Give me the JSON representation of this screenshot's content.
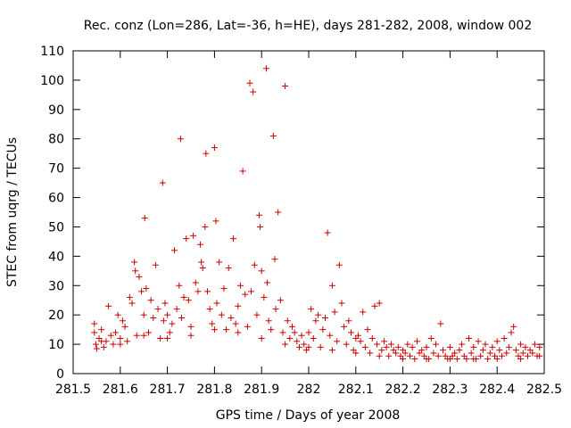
{
  "chart_data": {
    "type": "scatter",
    "title": "Rec. conz (Lon=286, Lat=-36, h=HE), days 281-282, 2008, window 002",
    "xlabel": "GPS time / Days of year 2008",
    "ylabel": "STEC from uqrg / TECUs",
    "xlim": [
      281.5,
      282.5
    ],
    "ylim": [
      0,
      110
    ],
    "xticks": [
      "281.5",
      "281.6",
      "281.7",
      "281.8",
      "281.9",
      "282",
      "282.1",
      "282.2",
      "282.3",
      "282.4",
      "282.5"
    ],
    "yticks": [
      "0",
      "10",
      "20",
      "30",
      "40",
      "50",
      "60",
      "70",
      "80",
      "90",
      "100",
      "110"
    ],
    "xtick_values": [
      281.5,
      281.6,
      281.7,
      281.8,
      281.9,
      282.0,
      282.1,
      282.2,
      282.3,
      282.4,
      282.5
    ],
    "ytick_values": [
      0,
      10,
      20,
      30,
      40,
      50,
      60,
      70,
      80,
      90,
      100,
      110
    ],
    "grid": false,
    "marker": "+",
    "marker_color": "#cc0000",
    "points": [
      [
        281.545,
        17
      ],
      [
        281.545,
        14
      ],
      [
        281.548,
        10
      ],
      [
        281.55,
        8.5
      ],
      [
        281.555,
        12
      ],
      [
        281.56,
        15
      ],
      [
        281.565,
        9
      ],
      [
        281.57,
        11
      ],
      [
        281.575,
        23
      ],
      [
        281.58,
        13
      ],
      [
        281.585,
        10
      ],
      [
        281.59,
        14
      ],
      [
        281.595,
        20
      ],
      [
        281.6,
        12
      ],
      [
        281.605,
        18
      ],
      [
        281.61,
        16
      ],
      [
        281.615,
        11
      ],
      [
        281.62,
        26
      ],
      [
        281.625,
        24
      ],
      [
        281.63,
        38
      ],
      [
        281.632,
        35
      ],
      [
        281.635,
        13
      ],
      [
        281.64,
        33
      ],
      [
        281.645,
        28
      ],
      [
        281.65,
        20
      ],
      [
        281.652,
        53
      ],
      [
        281.655,
        29
      ],
      [
        281.66,
        14
      ],
      [
        281.665,
        25
      ],
      [
        281.67,
        19
      ],
      [
        281.675,
        37
      ],
      [
        281.68,
        22
      ],
      [
        281.685,
        12
      ],
      [
        281.69,
        65
      ],
      [
        281.692,
        18
      ],
      [
        281.695,
        24
      ],
      [
        281.7,
        20
      ],
      [
        281.705,
        14
      ],
      [
        281.71,
        17
      ],
      [
        281.715,
        42
      ],
      [
        281.72,
        22
      ],
      [
        281.725,
        30
      ],
      [
        281.728,
        80
      ],
      [
        281.73,
        19
      ],
      [
        281.735,
        26
      ],
      [
        281.74,
        46
      ],
      [
        281.745,
        25
      ],
      [
        281.75,
        16
      ],
      [
        281.755,
        47
      ],
      [
        281.76,
        31
      ],
      [
        281.765,
        28
      ],
      [
        281.77,
        44
      ],
      [
        281.772,
        38
      ],
      [
        281.775,
        36
      ],
      [
        281.78,
        50
      ],
      [
        281.782,
        75
      ],
      [
        281.785,
        28
      ],
      [
        281.79,
        22
      ],
      [
        281.795,
        17
      ],
      [
        281.8,
        77
      ],
      [
        281.803,
        52
      ],
      [
        281.805,
        24
      ],
      [
        281.81,
        38
      ],
      [
        281.815,
        20
      ],
      [
        281.82,
        29
      ],
      [
        281.825,
        15
      ],
      [
        281.83,
        36
      ],
      [
        281.835,
        19
      ],
      [
        281.84,
        46
      ],
      [
        281.845,
        17
      ],
      [
        281.85,
        23
      ],
      [
        281.855,
        30
      ],
      [
        281.86,
        69
      ],
      [
        281.865,
        27
      ],
      [
        281.87,
        16
      ],
      [
        281.875,
        99
      ],
      [
        281.878,
        28
      ],
      [
        281.882,
        96
      ],
      [
        281.885,
        37
      ],
      [
        281.89,
        20
      ],
      [
        281.895,
        54
      ],
      [
        281.897,
        50
      ],
      [
        281.9,
        35
      ],
      [
        281.905,
        26
      ],
      [
        281.91,
        104
      ],
      [
        281.912,
        31
      ],
      [
        281.915,
        18
      ],
      [
        281.92,
        15
      ],
      [
        281.925,
        81
      ],
      [
        281.928,
        39
      ],
      [
        281.93,
        22
      ],
      [
        281.935,
        55
      ],
      [
        281.94,
        25
      ],
      [
        281.945,
        14
      ],
      [
        281.95,
        98
      ],
      [
        281.955,
        18
      ],
      [
        281.96,
        12
      ],
      [
        281.965,
        16
      ],
      [
        281.97,
        14
      ],
      [
        281.975,
        11
      ],
      [
        281.98,
        9
      ],
      [
        281.985,
        13
      ],
      [
        281.99,
        10
      ],
      [
        281.995,
        8
      ],
      [
        282.0,
        14
      ],
      [
        282.005,
        22
      ],
      [
        282.01,
        12
      ],
      [
        282.015,
        18
      ],
      [
        282.02,
        20
      ],
      [
        282.025,
        9
      ],
      [
        282.03,
        15
      ],
      [
        282.035,
        19
      ],
      [
        282.04,
        48
      ],
      [
        282.045,
        13
      ],
      [
        282.05,
        30
      ],
      [
        282.055,
        21
      ],
      [
        282.06,
        11
      ],
      [
        282.065,
        37
      ],
      [
        282.07,
        24
      ],
      [
        282.075,
        16
      ],
      [
        282.08,
        10
      ],
      [
        282.085,
        18
      ],
      [
        282.09,
        14
      ],
      [
        282.095,
        8
      ],
      [
        282.1,
        12
      ],
      [
        282.105,
        13
      ],
      [
        282.11,
        11
      ],
      [
        282.115,
        21
      ],
      [
        282.12,
        9
      ],
      [
        282.125,
        15
      ],
      [
        282.13,
        7
      ],
      [
        282.135,
        12
      ],
      [
        282.14,
        23
      ],
      [
        282.145,
        10
      ],
      [
        282.15,
        24
      ],
      [
        282.155,
        8
      ],
      [
        282.16,
        11
      ],
      [
        282.165,
        9
      ],
      [
        282.17,
        6
      ],
      [
        282.175,
        10
      ],
      [
        282.18,
        8
      ],
      [
        282.185,
        7
      ],
      [
        282.19,
        9
      ],
      [
        282.195,
        6
      ],
      [
        282.2,
        8
      ],
      [
        282.205,
        7
      ],
      [
        282.21,
        10
      ],
      [
        282.215,
        6
      ],
      [
        282.22,
        9
      ],
      [
        282.225,
        5
      ],
      [
        282.23,
        11
      ],
      [
        282.235,
        7
      ],
      [
        282.24,
        8
      ],
      [
        282.245,
        6
      ],
      [
        282.25,
        9
      ],
      [
        282.255,
        5
      ],
      [
        282.26,
        12
      ],
      [
        282.265,
        7
      ],
      [
        282.27,
        10
      ],
      [
        282.275,
        6
      ],
      [
        282.28,
        17
      ],
      [
        282.285,
        8
      ],
      [
        282.29,
        6
      ],
      [
        282.295,
        5
      ],
      [
        282.3,
        9
      ],
      [
        282.305,
        6
      ],
      [
        282.31,
        7
      ],
      [
        282.315,
        5
      ],
      [
        282.32,
        8
      ],
      [
        282.325,
        10
      ],
      [
        282.33,
        6
      ],
      [
        282.335,
        5
      ],
      [
        282.34,
        12
      ],
      [
        282.345,
        7
      ],
      [
        282.35,
        9
      ],
      [
        282.355,
        5
      ],
      [
        282.36,
        11
      ],
      [
        282.365,
        6
      ],
      [
        282.37,
        8
      ],
      [
        282.375,
        10
      ],
      [
        282.38,
        5
      ],
      [
        282.385,
        7
      ],
      [
        282.39,
        9
      ],
      [
        282.395,
        6
      ],
      [
        282.4,
        11
      ],
      [
        282.405,
        8
      ],
      [
        282.41,
        6
      ],
      [
        282.415,
        12
      ],
      [
        282.42,
        7
      ],
      [
        282.425,
        9
      ],
      [
        282.43,
        14
      ],
      [
        282.435,
        16
      ],
      [
        282.44,
        8
      ],
      [
        282.445,
        6
      ],
      [
        282.45,
        10
      ],
      [
        282.455,
        7
      ],
      [
        282.46,
        9
      ],
      [
        282.465,
        6
      ],
      [
        282.47,
        8
      ],
      [
        282.475,
        7
      ],
      [
        282.48,
        10
      ],
      [
        282.485,
        6
      ],
      [
        282.49,
        9
      ],
      [
        281.56,
        11
      ],
      [
        281.6,
        10
      ],
      [
        281.65,
        13
      ],
      [
        281.7,
        12
      ],
      [
        281.75,
        13
      ],
      [
        281.8,
        15
      ],
      [
        281.85,
        14
      ],
      [
        281.9,
        12
      ],
      [
        281.95,
        10
      ],
      [
        282.0,
        9
      ],
      [
        282.05,
        8
      ],
      [
        282.1,
        7
      ],
      [
        282.15,
        6
      ],
      [
        282.2,
        5
      ],
      [
        282.25,
        5
      ],
      [
        282.3,
        5
      ],
      [
        282.35,
        5
      ],
      [
        282.4,
        5
      ],
      [
        282.45,
        5
      ],
      [
        282.49,
        6
      ]
    ]
  }
}
